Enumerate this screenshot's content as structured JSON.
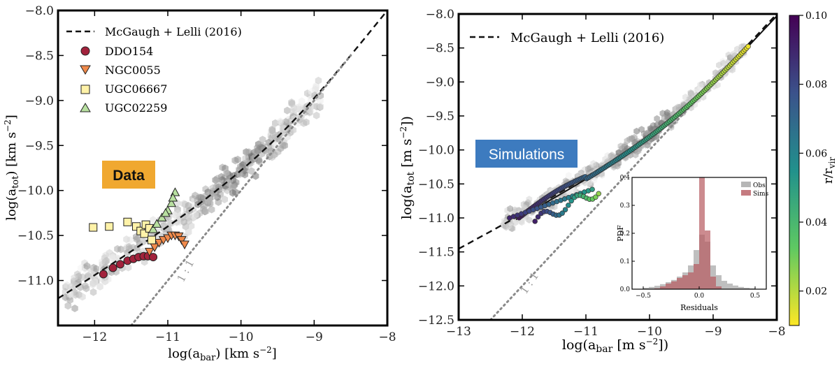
{
  "chart_data": [
    {
      "type": "scatter",
      "panel": "left",
      "xlabel": "log(a_bar) [km s^-2]",
      "ylabel": "log(a_tot) [km s^-2]",
      "xlim": [
        -12.5,
        -8
      ],
      "ylim": [
        -11.5,
        -8
      ],
      "xticks": [
        -12,
        -11,
        -10,
        -9,
        -8
      ],
      "yticks": [
        -11.0,
        -10.5,
        -10.0,
        -9.5,
        -9.0,
        -8.5,
        -8.0
      ],
      "xtick_labels": [
        "−12",
        "−11",
        "−10",
        "−9",
        "−8"
      ],
      "ytick_labels": [
        "−11.0",
        "−10.5",
        "−10.0",
        "−9.5",
        "−9.0",
        "−8.5",
        "−8.0"
      ],
      "badge": "Data",
      "one_to_one_label": "1 : 1",
      "legend": {
        "position": "top-left",
        "entries": [
          {
            "label": "McGaugh + Lelli (2016)",
            "kind": "dashed-line"
          },
          {
            "label": "DDO154",
            "kind": "circle",
            "color": "#a2223c"
          },
          {
            "label": "NGC0055",
            "kind": "triangle-down",
            "color": "#f08a4b"
          },
          {
            "label": "UGC06667",
            "kind": "square",
            "color": "#fff2a8"
          },
          {
            "label": "UGC02259",
            "kind": "triangle-up",
            "color": "#b8e0a0"
          }
        ]
      },
      "series": [
        {
          "name": "DDO154",
          "marker": "circle",
          "color": "#a2223c",
          "x": [
            -11.88,
            -11.75,
            -11.65,
            -11.55,
            -11.47,
            -11.4,
            -11.33,
            -11.27,
            -11.2
          ],
          "y": [
            -10.93,
            -10.86,
            -10.82,
            -10.78,
            -10.76,
            -10.74,
            -10.73,
            -10.73,
            -10.74
          ]
        },
        {
          "name": "NGC0055",
          "marker": "triangle-down",
          "color": "#f08a4b",
          "x": [
            -11.25,
            -11.18,
            -11.12,
            -11.06,
            -11.0,
            -10.95,
            -10.9,
            -10.85,
            -10.81,
            -10.77
          ],
          "y": [
            -10.68,
            -10.63,
            -10.58,
            -10.55,
            -10.53,
            -10.5,
            -10.5,
            -10.51,
            -10.55,
            -10.6
          ]
        },
        {
          "name": "UGC06667",
          "marker": "square",
          "color": "#fff2a8",
          "x": [
            -12.02,
            -11.8,
            -11.55,
            -11.43,
            -11.37,
            -11.32,
            -11.3,
            -11.25,
            -11.22
          ],
          "y": [
            -10.41,
            -10.4,
            -10.35,
            -10.4,
            -10.45,
            -10.48,
            -10.38,
            -10.42,
            -10.55
          ]
        },
        {
          "name": "UGC02259",
          "marker": "triangle-up",
          "color": "#b8e0a0",
          "x": [
            -11.2,
            -11.15,
            -11.08,
            -11.0,
            -10.95,
            -10.9,
            -10.93,
            -11.03
          ],
          "y": [
            -10.43,
            -10.37,
            -10.3,
            -10.22,
            -10.14,
            -10.02,
            -10.08,
            -10.25
          ]
        }
      ]
    },
    {
      "type": "scatter",
      "panel": "right",
      "xlabel": "log(a_bar [m s^-2])",
      "ylabel": "log(a_tot [m s^-2])",
      "xlim": [
        -13,
        -8
      ],
      "ylim": [
        -12.5,
        -8
      ],
      "xticks": [
        -13,
        -12,
        -11,
        -10,
        -9,
        -8
      ],
      "yticks": [
        -12.5,
        -12.0,
        -11.5,
        -11.0,
        -10.5,
        -10.0,
        -9.5,
        -9.0,
        -8.5,
        -8.0
      ],
      "xtick_labels": [
        "−13",
        "−12",
        "−11",
        "−10",
        "−9",
        "−8"
      ],
      "ytick_labels": [
        "−12.5",
        "−12.0",
        "−11.5",
        "−11.0",
        "−10.5",
        "−10.0",
        "−9.5",
        "−9.0",
        "−8.5",
        "−8.0"
      ],
      "badge": "Simulations",
      "one_to_one_label": "1 : 1",
      "legend": {
        "position": "top-left",
        "entries": [
          {
            "label": "McGaugh + Lelli (2016)",
            "kind": "dashed-line"
          }
        ]
      },
      "colorbar": {
        "label": "r/r_vir",
        "range": [
          0.01,
          0.1
        ],
        "ticks": [
          0.02,
          0.04,
          0.06,
          0.08,
          0.1
        ],
        "tick_labels": [
          "0.02",
          "0.04",
          "0.06",
          "0.08",
          "0.10"
        ]
      },
      "tracks": [
        {
          "name": "track 1",
          "x_start": -12.05,
          "x_end": -8.45,
          "r_start": 0.095,
          "r_end": 0.012
        },
        {
          "name": "track 2",
          "x_start": -12.2,
          "x_end": -10.9,
          "r_start": 0.09,
          "r_end": 0.05
        },
        {
          "name": "track 3",
          "x_start": -11.8,
          "x_end": -10.8,
          "r_start": 0.092,
          "r_end": 0.025
        }
      ],
      "inset": {
        "type": "histogram",
        "xlabel": "Residuals",
        "ylabel": "PDF",
        "xlim": [
          -0.6,
          0.6
        ],
        "ylim": [
          0,
          0.4
        ],
        "xticks": [
          -0.5,
          0.0,
          0.5
        ],
        "yticks": [
          0.0,
          0.1,
          0.2,
          0.3,
          0.4
        ],
        "xtick_labels": [
          "−0.5",
          "0.0",
          "0.5"
        ],
        "ytick_labels": [
          "0.0",
          "0.1",
          "0.2",
          "0.3",
          "0.4"
        ],
        "bin_edges": [
          -0.5,
          -0.45,
          -0.4,
          -0.35,
          -0.3,
          -0.25,
          -0.2,
          -0.15,
          -0.1,
          -0.05,
          0.0,
          0.05,
          0.1,
          0.15,
          0.2,
          0.25,
          0.3,
          0.35,
          0.4,
          0.45,
          0.5
        ],
        "series": [
          {
            "name": "Obs",
            "color": "#a9a9a9",
            "values": [
              0.005,
              0.008,
              0.012,
              0.018,
              0.025,
              0.033,
              0.045,
              0.06,
              0.085,
              0.14,
              0.195,
              0.17,
              0.085,
              0.05,
              0.03,
              0.02,
              0.013,
              0.008,
              0.005,
              0.003
            ]
          },
          {
            "name": "Sims",
            "color": "#b65a60",
            "values": [
              0.0,
              0.0,
              0.003,
              0.01,
              0.02,
              0.028,
              0.04,
              0.05,
              0.06,
              0.09,
              0.4,
              0.21,
              0.045,
              0.01,
              0.0,
              0.0,
              0.0,
              0.0,
              0.0,
              0.0
            ]
          }
        ]
      }
    }
  ]
}
